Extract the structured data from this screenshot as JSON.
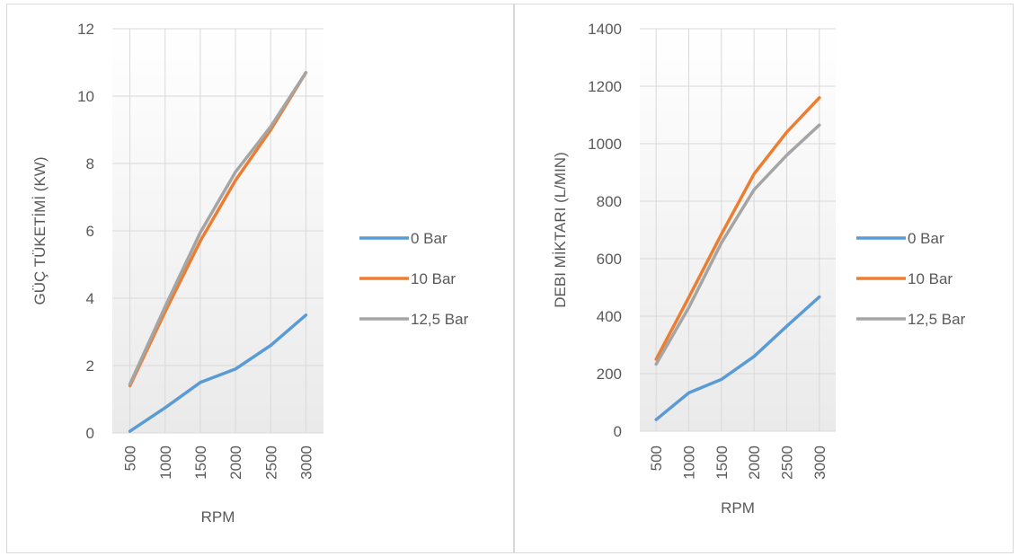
{
  "chart_data": [
    {
      "type": "line",
      "categories": [
        "500",
        "1000",
        "1500",
        "2000",
        "2500",
        "3000"
      ],
      "series": [
        {
          "name": "0 Bar",
          "color": "#5b9bd5",
          "values": [
            0.05,
            0.75,
            1.5,
            1.9,
            2.6,
            3.5
          ]
        },
        {
          "name": "10 Bar",
          "color": "#ed7d31",
          "values": [
            1.4,
            3.6,
            5.7,
            7.5,
            9.0,
            10.7
          ]
        },
        {
          "name": "12,5 Bar",
          "color": "#a5a5a5",
          "values": [
            1.45,
            3.75,
            5.95,
            7.75,
            9.1,
            10.7
          ]
        }
      ],
      "title": "",
      "xlabel": "RPM",
      "ylabel": "GÜÇ TÜKETİMİ (KW)",
      "ylim": [
        0,
        12
      ],
      "yticks": [
        "0",
        "2",
        "4",
        "6",
        "8",
        "10",
        "12"
      ],
      "grid": true,
      "legend": "right"
    },
    {
      "type": "line",
      "categories": [
        "500",
        "1000",
        "1500",
        "2000",
        "2500",
        "3000"
      ],
      "series": [
        {
          "name": "0 Bar",
          "color": "#5b9bd5",
          "values": [
            40,
            133,
            180,
            260,
            365,
            467
          ]
        },
        {
          "name": "10 Bar",
          "color": "#ed7d31",
          "values": [
            250,
            465,
            685,
            895,
            1040,
            1160
          ]
        },
        {
          "name": "12,5 Bar",
          "color": "#a5a5a5",
          "values": [
            233,
            430,
            655,
            840,
            960,
            1065
          ]
        }
      ],
      "title": "",
      "xlabel": "RPM",
      "ylabel": "DEBI MİKTARI (L/MIN)",
      "ylim": [
        0,
        1400
      ],
      "yticks": [
        "0",
        "200",
        "400",
        "600",
        "800",
        "1000",
        "1200",
        "1400"
      ],
      "grid": true,
      "legend": "right"
    }
  ]
}
